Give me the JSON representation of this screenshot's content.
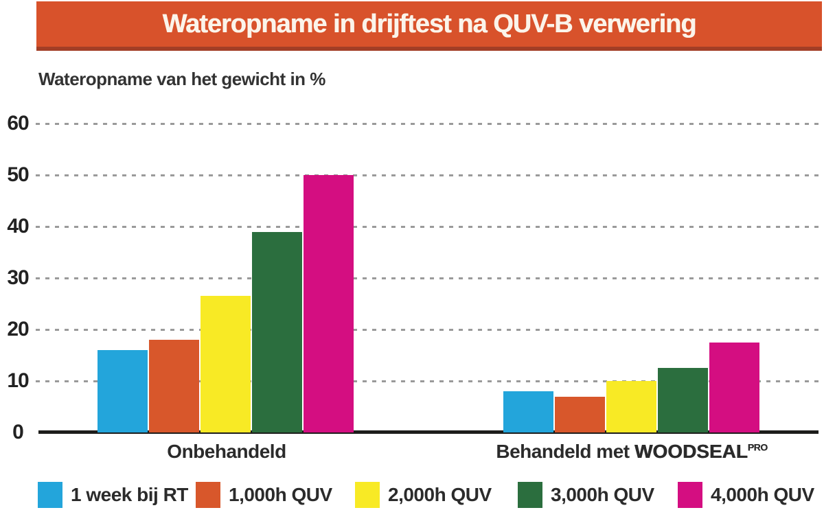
{
  "title": "Wateropname in drijftest na QUV-B verwering",
  "subtitle": "Wateropname van het gewicht in %",
  "colors": {
    "banner": "#d8522b",
    "banner-dark": "#a23e26",
    "grid": "#9a9a9a",
    "axis": "#1d1d1b",
    "text": "#2b2b2b"
  },
  "x_axis": {
    "label_left": "Onbehandeld",
    "label_right_prefix": "Behandeld met ",
    "label_right_brand": "WOODSEAL",
    "label_right_sup": "PRO"
  },
  "chart_data": {
    "type": "bar",
    "title": "Wateropname in drijftest na QUV-B verwering",
    "ylabel": "Wateropname van het gewicht in %",
    "xlabel": "",
    "ylim": [
      0,
      60
    ],
    "yticks": [
      0,
      10,
      20,
      30,
      40,
      50,
      60
    ],
    "grid": "horizontal-dotted",
    "legend_position": "bottom",
    "categories": [
      "Onbehandeld",
      "Behandeld met WOODSEAL PRO"
    ],
    "series": [
      {
        "name": "1 week bij RT",
        "color": "#23a5db",
        "values": [
          16,
          8
        ]
      },
      {
        "name": "1,000h QUV",
        "color": "#d8572b",
        "values": [
          18,
          7
        ]
      },
      {
        "name": "2,000h QUV",
        "color": "#f8ea25",
        "values": [
          26.5,
          10
        ]
      },
      {
        "name": "3,000h QUV",
        "color": "#2b6e3e",
        "values": [
          39,
          12.5
        ]
      },
      {
        "name": "4,000h QUV",
        "color": "#d40e81",
        "values": [
          50,
          17.5
        ]
      }
    ]
  }
}
